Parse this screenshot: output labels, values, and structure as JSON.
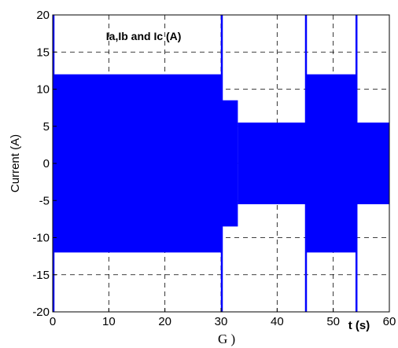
{
  "chart_data": {
    "type": "area",
    "ylabel": "Current (A)",
    "xlim": [
      0,
      60
    ],
    "ylim": [
      -20,
      20
    ],
    "xticks": [
      "0",
      "10",
      "20",
      "30",
      "40",
      "50",
      "60"
    ],
    "yticks": [
      "20",
      "15",
      "10",
      "5",
      "0",
      "-5",
      "-10",
      "-15",
      "-20"
    ],
    "grid": true,
    "annotation": "Ia,Ib and Ic (A)",
    "x_unit_label": "t (s)",
    "caption": "G )",
    "series": [
      {
        "color": "#0000ff",
        "segments": [
          {
            "x": [
              0,
              30
            ],
            "amplitude": 12
          },
          {
            "x": [
              30,
              33
            ],
            "amplitude": 8.5
          },
          {
            "x": [
              33,
              45
            ],
            "amplitude": 5.5
          },
          {
            "x": [
              45,
              54
            ],
            "amplitude": 12
          },
          {
            "x": [
              54,
              60
            ],
            "amplitude": 5.5
          }
        ],
        "spikes_x": [
          0,
          30,
          45,
          54
        ],
        "spike_peak": 20
      }
    ]
  }
}
